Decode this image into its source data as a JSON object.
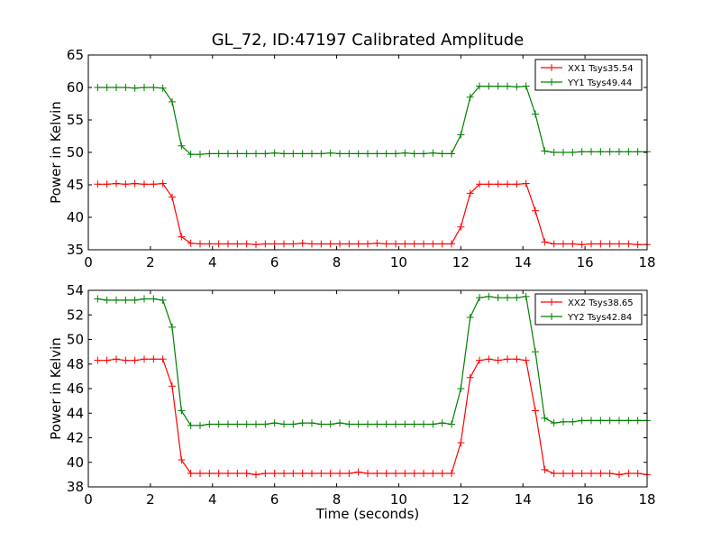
{
  "figure": {
    "title": "GL_72, ID:47197 Calibrated Amplitude",
    "xlabel": "Time (seconds)"
  },
  "chart_data": [
    {
      "type": "line",
      "ylabel": "Power in Kelvin",
      "xlim": [
        0,
        18
      ],
      "ylim": [
        35,
        65
      ],
      "xticks": [
        0,
        2,
        4,
        6,
        8,
        10,
        12,
        14,
        16,
        18
      ],
      "yticks": [
        35,
        40,
        45,
        50,
        55,
        60,
        65
      ],
      "legend": "top-right",
      "x": [
        0.3,
        0.6,
        0.9,
        1.2,
        1.5,
        1.8,
        2.1,
        2.4,
        2.7,
        3.0,
        3.3,
        3.6,
        3.9,
        4.2,
        4.5,
        4.8,
        5.1,
        5.4,
        5.7,
        6.0,
        6.3,
        6.6,
        6.9,
        7.2,
        7.5,
        7.8,
        8.1,
        8.4,
        8.7,
        9.0,
        9.3,
        9.6,
        9.9,
        10.2,
        10.5,
        10.8,
        11.1,
        11.4,
        11.7,
        12.0,
        12.3,
        12.6,
        12.9,
        13.2,
        13.5,
        13.8,
        14.1,
        14.4,
        14.7,
        15.0,
        15.3,
        15.6,
        15.9,
        16.2,
        16.5,
        16.8,
        17.1,
        17.4,
        17.7,
        18.0
      ],
      "series": [
        {
          "name": "XX1 Tsys35.54",
          "color": "#ff0000",
          "values": [
            45.1,
            45.1,
            45.2,
            45.1,
            45.2,
            45.1,
            45.1,
            45.2,
            43.1,
            37.0,
            36.0,
            35.9,
            35.9,
            35.9,
            35.9,
            35.9,
            35.9,
            35.8,
            35.9,
            35.9,
            35.9,
            35.9,
            36.0,
            35.9,
            35.9,
            35.9,
            35.9,
            35.9,
            35.9,
            35.9,
            36.0,
            35.9,
            35.9,
            35.9,
            35.9,
            35.9,
            35.9,
            35.9,
            35.9,
            38.5,
            43.7,
            45.1,
            45.1,
            45.1,
            45.1,
            45.1,
            45.2,
            41.0,
            36.2,
            35.9,
            35.9,
            35.9,
            35.8,
            35.9,
            35.9,
            35.9,
            35.9,
            35.9,
            35.8,
            35.8
          ]
        },
        {
          "name": "YY1 Tsys49.44",
          "color": "#008000",
          "values": [
            60.0,
            60.0,
            60.0,
            60.0,
            59.9,
            60.0,
            60.0,
            59.9,
            57.8,
            51.0,
            49.7,
            49.7,
            49.8,
            49.8,
            49.8,
            49.8,
            49.8,
            49.8,
            49.8,
            49.9,
            49.8,
            49.8,
            49.8,
            49.8,
            49.8,
            49.9,
            49.8,
            49.8,
            49.8,
            49.8,
            49.8,
            49.8,
            49.8,
            49.9,
            49.8,
            49.8,
            49.9,
            49.8,
            49.8,
            52.7,
            58.5,
            60.2,
            60.2,
            60.2,
            60.2,
            60.1,
            60.2,
            55.9,
            50.2,
            50.0,
            50.0,
            50.0,
            50.1,
            50.1,
            50.1,
            50.1,
            50.1,
            50.1,
            50.1,
            50.1
          ]
        }
      ]
    },
    {
      "type": "line",
      "ylabel": "Power in Kelvin",
      "xlim": [
        0,
        18
      ],
      "ylim": [
        38,
        54
      ],
      "xticks": [
        0,
        2,
        4,
        6,
        8,
        10,
        12,
        14,
        16,
        18
      ],
      "yticks": [
        38,
        40,
        42,
        44,
        46,
        48,
        50,
        52,
        54
      ],
      "legend": "top-right",
      "x": [
        0.3,
        0.6,
        0.9,
        1.2,
        1.5,
        1.8,
        2.1,
        2.4,
        2.7,
        3.0,
        3.3,
        3.6,
        3.9,
        4.2,
        4.5,
        4.8,
        5.1,
        5.4,
        5.7,
        6.0,
        6.3,
        6.6,
        6.9,
        7.2,
        7.5,
        7.8,
        8.1,
        8.4,
        8.7,
        9.0,
        9.3,
        9.6,
        9.9,
        10.2,
        10.5,
        10.8,
        11.1,
        11.4,
        11.7,
        12.0,
        12.3,
        12.6,
        12.9,
        13.2,
        13.5,
        13.8,
        14.1,
        14.4,
        14.7,
        15.0,
        15.3,
        15.6,
        15.9,
        16.2,
        16.5,
        16.8,
        17.1,
        17.4,
        17.7,
        18.0
      ],
      "series": [
        {
          "name": "XX2 Tsys38.65",
          "color": "#ff0000",
          "values": [
            48.3,
            48.3,
            48.4,
            48.3,
            48.3,
            48.4,
            48.4,
            48.4,
            46.2,
            40.2,
            39.1,
            39.1,
            39.1,
            39.1,
            39.1,
            39.1,
            39.1,
            39.0,
            39.1,
            39.1,
            39.1,
            39.1,
            39.1,
            39.1,
            39.1,
            39.1,
            39.1,
            39.1,
            39.2,
            39.1,
            39.1,
            39.1,
            39.1,
            39.1,
            39.1,
            39.1,
            39.1,
            39.1,
            39.1,
            41.6,
            46.9,
            48.3,
            48.4,
            48.3,
            48.4,
            48.4,
            48.3,
            44.2,
            39.4,
            39.1,
            39.1,
            39.1,
            39.1,
            39.1,
            39.1,
            39.1,
            39.0,
            39.1,
            39.1,
            39.0
          ]
        },
        {
          "name": "YY2 Tsys42.84",
          "color": "#008000",
          "values": [
            53.3,
            53.2,
            53.2,
            53.2,
            53.2,
            53.3,
            53.3,
            53.2,
            51.0,
            44.2,
            43.0,
            43.0,
            43.1,
            43.1,
            43.1,
            43.1,
            43.1,
            43.1,
            43.1,
            43.2,
            43.1,
            43.1,
            43.2,
            43.2,
            43.1,
            43.1,
            43.2,
            43.1,
            43.1,
            43.1,
            43.1,
            43.1,
            43.1,
            43.1,
            43.1,
            43.1,
            43.1,
            43.2,
            43.1,
            46.0,
            51.8,
            53.4,
            53.5,
            53.4,
            53.4,
            53.4,
            53.5,
            49.0,
            43.6,
            43.2,
            43.3,
            43.3,
            43.4,
            43.4,
            43.4,
            43.4,
            43.4,
            43.4,
            43.4,
            43.4
          ]
        }
      ]
    }
  ]
}
